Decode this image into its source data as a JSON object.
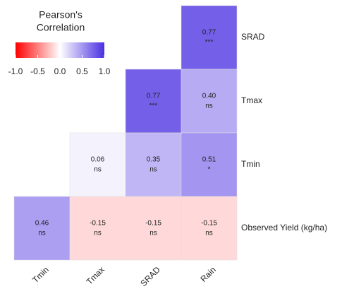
{
  "chart_data": {
    "type": "heatmap",
    "legend_title": [
      "Pearson's",
      "Correlation"
    ],
    "rows": [
      "SRAD",
      "Tmax",
      "Tmin",
      "Observed Yield (kg/ha)"
    ],
    "columns": [
      "Tmin",
      "Tmax",
      "SRAD",
      "Rain"
    ],
    "values": [
      [
        null,
        null,
        null,
        0.77
      ],
      [
        null,
        null,
        0.77,
        0.4
      ],
      [
        null,
        0.06,
        0.35,
        0.51
      ],
      [
        0.46,
        -0.15,
        -0.15,
        -0.15
      ]
    ],
    "value_labels": [
      [
        null,
        null,
        null,
        "0.77"
      ],
      [
        null,
        null,
        "0.77",
        "0.40"
      ],
      [
        null,
        "0.06",
        "0.35",
        "0.51"
      ],
      [
        "0.46",
        "-0.15",
        "-0.15",
        "-0.15"
      ]
    ],
    "significance": [
      [
        null,
        null,
        null,
        "***"
      ],
      [
        null,
        null,
        "***",
        "ns"
      ],
      [
        null,
        "ns",
        "ns",
        "*"
      ],
      [
        "ns",
        "ns",
        "ns",
        "ns"
      ]
    ],
    "colorscale": [
      "#ff0000",
      "#ffffff",
      "#4a2fe2"
    ],
    "clim": [
      -1,
      1
    ],
    "cticks": [
      {
        "value": -1,
        "label": "-1.0"
      },
      {
        "value": -0.5,
        "label": "-0.5"
      },
      {
        "value": 0,
        "label": "0.0"
      },
      {
        "value": 0.5,
        "label": "0.5"
      },
      {
        "value": 1,
        "label": "1.0"
      }
    ]
  }
}
